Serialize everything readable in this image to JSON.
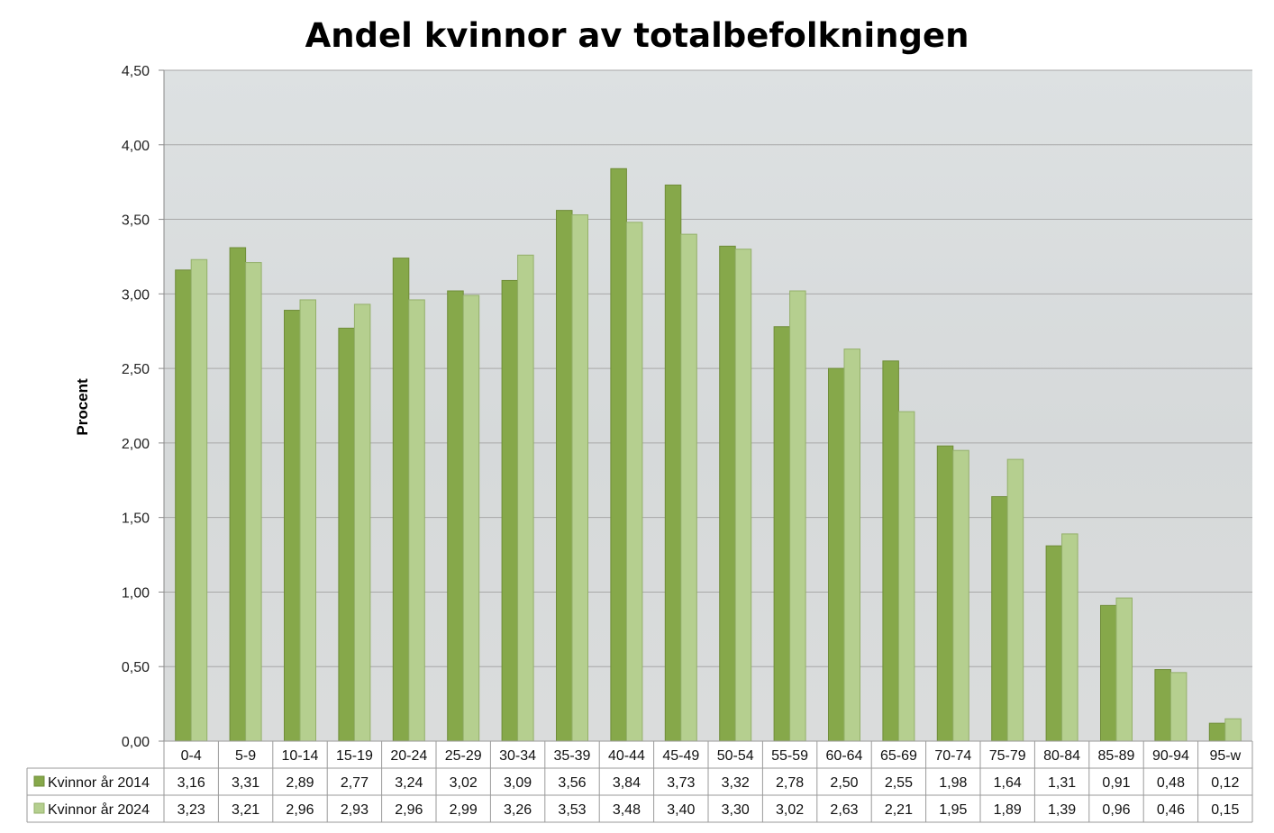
{
  "chart_data": {
    "type": "bar",
    "title": "Andel kvinnor av totalbefolkningen",
    "xlabel": "",
    "ylabel": "Procent",
    "ylim": [
      0,
      4.5
    ],
    "yticks": [
      "0,00",
      "0,50",
      "1,00",
      "1,50",
      "2,00",
      "2,50",
      "3,00",
      "3,50",
      "4,00",
      "4,50"
    ],
    "grid": true,
    "legend": "data-table-left",
    "categories": [
      "0-4",
      "5-9",
      "10-14",
      "15-19",
      "20-24",
      "25-29",
      "30-34",
      "35-39",
      "40-44",
      "45-49",
      "50-54",
      "55-59",
      "60-64",
      "65-69",
      "70-74",
      "75-79",
      "80-84",
      "85-89",
      "90-94",
      "95-w"
    ],
    "series": [
      {
        "name": "Kvinnor år 2014",
        "color": "#86a84a",
        "values": [
          3.16,
          3.31,
          2.89,
          2.77,
          3.24,
          3.02,
          3.09,
          3.56,
          3.84,
          3.73,
          3.32,
          2.78,
          2.5,
          2.55,
          1.98,
          1.64,
          1.31,
          0.91,
          0.48,
          0.12
        ],
        "labels": [
          "3,16",
          "3,31",
          "2,89",
          "2,77",
          "3,24",
          "3,02",
          "3,09",
          "3,56",
          "3,84",
          "3,73",
          "3,32",
          "2,78",
          "2,50",
          "2,55",
          "1,98",
          "1,64",
          "1,31",
          "0,91",
          "0,48",
          "0,12"
        ]
      },
      {
        "name": "Kvinnor år 2024",
        "color": "#b5cf8f",
        "values": [
          3.23,
          3.21,
          2.96,
          2.93,
          2.96,
          2.99,
          3.26,
          3.53,
          3.48,
          3.4,
          3.3,
          3.02,
          2.63,
          2.21,
          1.95,
          1.89,
          1.39,
          0.96,
          0.46,
          0.15
        ],
        "labels": [
          "3,23",
          "3,21",
          "2,96",
          "2,93",
          "2,96",
          "2,99",
          "3,26",
          "3,53",
          "3,48",
          "3,40",
          "3,30",
          "3,02",
          "2,63",
          "2,21",
          "1,95",
          "1,89",
          "1,39",
          "0,96",
          "0,46",
          "0,15"
        ]
      }
    ]
  }
}
